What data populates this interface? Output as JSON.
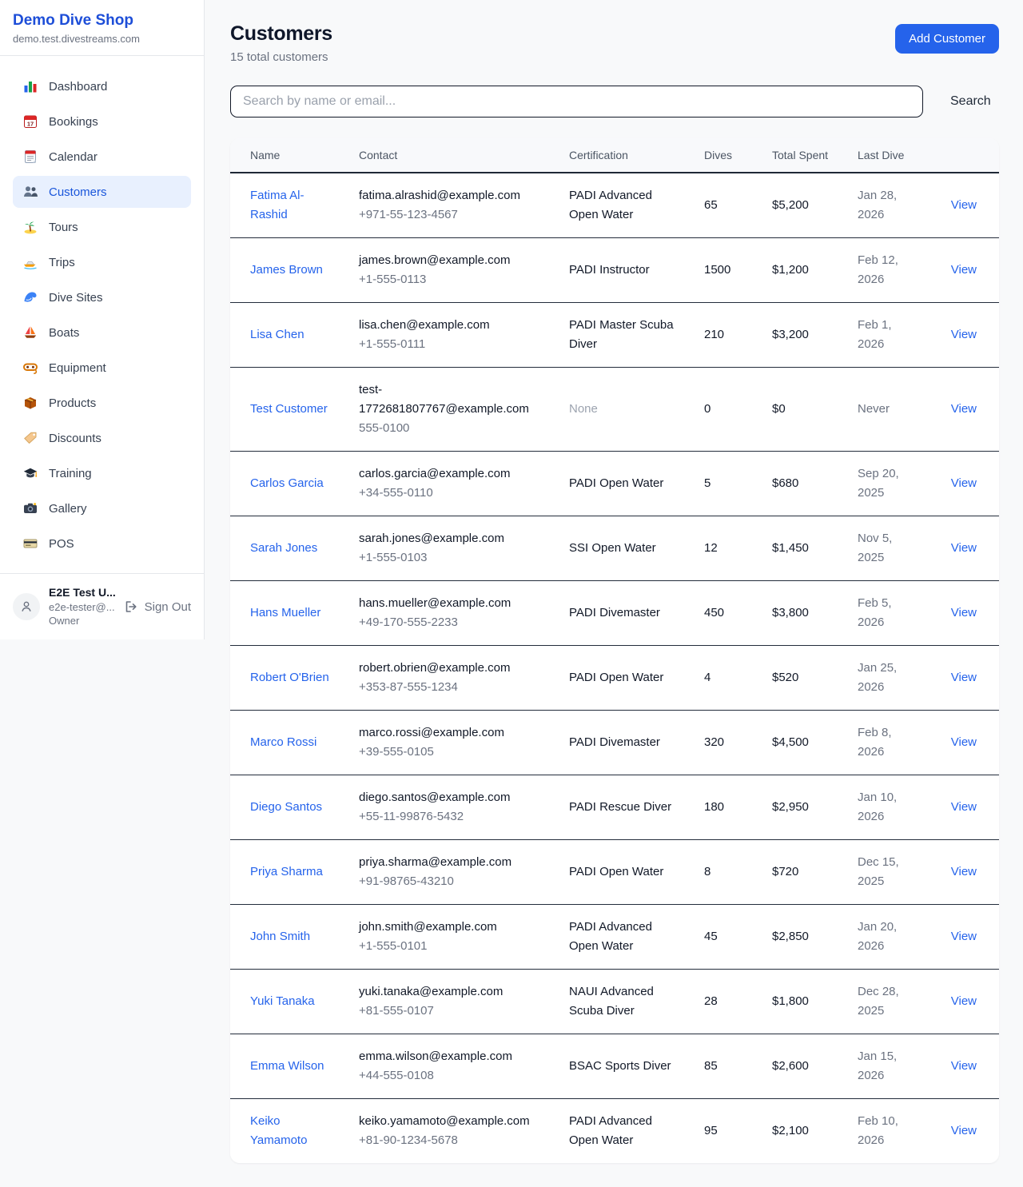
{
  "sidebar": {
    "brand": {
      "title": "Demo Dive Shop",
      "domain": "demo.test.divestreams.com"
    },
    "items": [
      {
        "label": "Dashboard",
        "icon": "bar-chart-icon",
        "active": false
      },
      {
        "label": "Bookings",
        "icon": "calendar-bookings-icon",
        "active": false
      },
      {
        "label": "Calendar",
        "icon": "calendar-icon",
        "active": false
      },
      {
        "label": "Customers",
        "icon": "users-icon",
        "active": true
      },
      {
        "label": "Tours",
        "icon": "island-icon",
        "active": false
      },
      {
        "label": "Trips",
        "icon": "speedboat-icon",
        "active": false
      },
      {
        "label": "Dive Sites",
        "icon": "wave-icon",
        "active": false
      },
      {
        "label": "Boats",
        "icon": "sailboat-icon",
        "active": false
      },
      {
        "label": "Equipment",
        "icon": "dive-mask-icon",
        "active": false
      },
      {
        "label": "Products",
        "icon": "package-icon",
        "active": false
      },
      {
        "label": "Discounts",
        "icon": "tag-icon",
        "active": false
      },
      {
        "label": "Training",
        "icon": "graduation-cap-icon",
        "active": false
      },
      {
        "label": "Gallery",
        "icon": "camera-icon",
        "active": false
      },
      {
        "label": "POS",
        "icon": "credit-card-icon",
        "active": false
      }
    ],
    "user": {
      "name": "E2E Test U...",
      "email": "e2e-tester@...",
      "role": "Owner",
      "sign_out_label": "Sign Out"
    }
  },
  "header": {
    "title": "Customers",
    "subtitle": "15 total customers",
    "add_button_label": "Add Customer"
  },
  "search": {
    "placeholder": "Search by name or email...",
    "button_label": "Search"
  },
  "table": {
    "columns": [
      "Name",
      "Contact",
      "Certification",
      "Dives",
      "Total Spent",
      "Last Dive",
      ""
    ],
    "view_label": "View",
    "rows": [
      {
        "name": "Fatima Al-Rashid",
        "email": "fatima.alrashid@example.com",
        "phone": "+971-55-123-4567",
        "certification": "PADI Advanced Open Water",
        "dives": "65",
        "total_spent": "$5,200",
        "last_dive": "Jan 28, 2026"
      },
      {
        "name": "James Brown",
        "email": "james.brown@example.com",
        "phone": "+1-555-0113",
        "certification": "PADI Instructor",
        "dives": "1500",
        "total_spent": "$1,200",
        "last_dive": "Feb 12, 2026"
      },
      {
        "name": "Lisa Chen",
        "email": "lisa.chen@example.com",
        "phone": "+1-555-0111",
        "certification": "PADI Master Scuba Diver",
        "dives": "210",
        "total_spent": "$3,200",
        "last_dive": "Feb 1, 2026"
      },
      {
        "name": "Test Customer",
        "email": "test-1772681807767@example.com",
        "phone": "555-0100",
        "certification": "None",
        "dives": "0",
        "total_spent": "$0",
        "last_dive": "Never"
      },
      {
        "name": "Carlos Garcia",
        "email": "carlos.garcia@example.com",
        "phone": "+34-555-0110",
        "certification": "PADI Open Water",
        "dives": "5",
        "total_spent": "$680",
        "last_dive": "Sep 20, 2025"
      },
      {
        "name": "Sarah Jones",
        "email": "sarah.jones@example.com",
        "phone": "+1-555-0103",
        "certification": "SSI Open Water",
        "dives": "12",
        "total_spent": "$1,450",
        "last_dive": "Nov 5, 2025"
      },
      {
        "name": "Hans Mueller",
        "email": "hans.mueller@example.com",
        "phone": "+49-170-555-2233",
        "certification": "PADI Divemaster",
        "dives": "450",
        "total_spent": "$3,800",
        "last_dive": "Feb 5, 2026"
      },
      {
        "name": "Robert O'Brien",
        "email": "robert.obrien@example.com",
        "phone": "+353-87-555-1234",
        "certification": "PADI Open Water",
        "dives": "4",
        "total_spent": "$520",
        "last_dive": "Jan 25, 2026"
      },
      {
        "name": "Marco Rossi",
        "email": "marco.rossi@example.com",
        "phone": "+39-555-0105",
        "certification": "PADI Divemaster",
        "dives": "320",
        "total_spent": "$4,500",
        "last_dive": "Feb 8, 2026"
      },
      {
        "name": "Diego Santos",
        "email": "diego.santos@example.com",
        "phone": "+55-11-99876-5432",
        "certification": "PADI Rescue Diver",
        "dives": "180",
        "total_spent": "$2,950",
        "last_dive": "Jan 10, 2026"
      },
      {
        "name": "Priya Sharma",
        "email": "priya.sharma@example.com",
        "phone": "+91-98765-43210",
        "certification": "PADI Open Water",
        "dives": "8",
        "total_spent": "$720",
        "last_dive": "Dec 15, 2025"
      },
      {
        "name": "John Smith",
        "email": "john.smith@example.com",
        "phone": "+1-555-0101",
        "certification": "PADI Advanced Open Water",
        "dives": "45",
        "total_spent": "$2,850",
        "last_dive": "Jan 20, 2026"
      },
      {
        "name": "Yuki Tanaka",
        "email": "yuki.tanaka@example.com",
        "phone": "+81-555-0107",
        "certification": "NAUI Advanced Scuba Diver",
        "dives": "28",
        "total_spent": "$1,800",
        "last_dive": "Dec 28, 2025"
      },
      {
        "name": "Emma Wilson",
        "email": "emma.wilson@example.com",
        "phone": "+44-555-0108",
        "certification": "BSAC Sports Diver",
        "dives": "85",
        "total_spent": "$2,600",
        "last_dive": "Jan 15, 2026"
      },
      {
        "name": "Keiko Yamamoto",
        "email": "keiko.yamamoto@example.com",
        "phone": "+81-90-1234-5678",
        "certification": "PADI Advanced Open Water",
        "dives": "95",
        "total_spent": "$2,100",
        "last_dive": "Feb 10, 2026"
      }
    ]
  },
  "colors": {
    "accent": "#2563eb",
    "brand_blue": "#1d4ed8",
    "active_item_bg": "#e8f0fe",
    "active_item_text": "#1a56db",
    "page_bg": "#f8f9fa",
    "muted_text": "#6b7280",
    "row_border": "#1f2937"
  }
}
